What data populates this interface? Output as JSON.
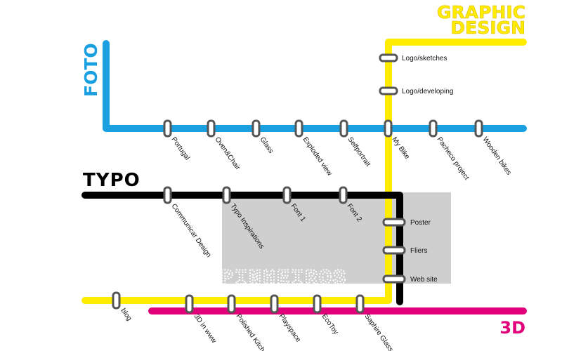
{
  "colors": {
    "foto": "#1a9fe0",
    "graphic_design": "#ffec00",
    "typo": "#000000",
    "threed": "#e2007a",
    "overlay": "#cfcfcf",
    "station_border": "#555555"
  },
  "lines": {
    "foto": {
      "title": "FOTO",
      "stops": [
        "Portugal",
        "Oven&Chair",
        "Glass",
        "Exploded view",
        "Selfportrait",
        "My Bike",
        "Pacheco project",
        "Wooden bikes"
      ]
    },
    "graphic_design": {
      "title_line1": "GRAPHIC",
      "title_line2": "DESIGN",
      "stops": [
        "Logo/sketches",
        "Logo/developing"
      ]
    },
    "typo": {
      "title": "TYPO",
      "stops": [
        "Communicar Design",
        "Typo Inspirations",
        "Font 1",
        "Font 2",
        "Poster",
        "Fliers",
        "Web site"
      ]
    },
    "threed": {
      "title": "3D",
      "stops": [
        "blog",
        "3D in www",
        "Polished Kitchen",
        "Playspace",
        "EcoToy",
        "Saphire Glass"
      ]
    }
  },
  "overlay_text": "PINHEIROS"
}
